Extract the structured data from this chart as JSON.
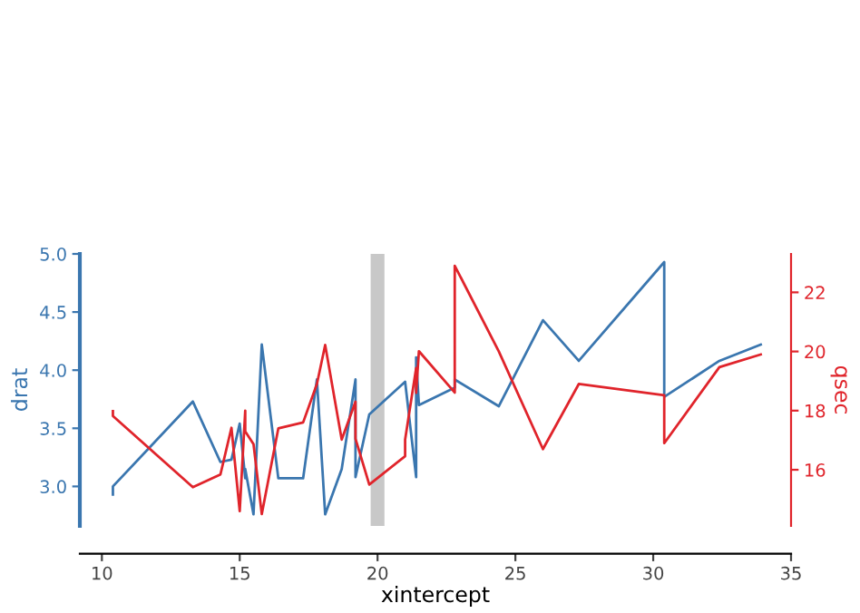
{
  "chart_data": {
    "type": "line",
    "xlabel": "xintercept",
    "ylabel": "drat",
    "y2label": "qsec",
    "x": [
      10.4,
      10.4,
      13.3,
      14.3,
      14.7,
      15.0,
      15.2,
      15.2,
      15.5,
      15.8,
      16.4,
      17.3,
      17.8,
      18.1,
      18.7,
      19.2,
      19.2,
      19.7,
      21.0,
      21.0,
      21.4,
      21.4,
      21.5,
      22.8,
      22.8,
      24.4,
      26.0,
      27.3,
      30.4,
      30.4,
      32.4,
      33.9
    ],
    "series": [
      {
        "color": "#3a76af",
        "axis": "y",
        "values": [
          2.93,
          3.0,
          3.73,
          3.21,
          3.23,
          3.54,
          3.07,
          3.15,
          2.76,
          4.22,
          3.07,
          3.07,
          3.92,
          2.76,
          3.15,
          3.92,
          3.08,
          3.62,
          3.9,
          3.9,
          3.08,
          4.11,
          3.7,
          3.85,
          3.92,
          3.69,
          4.43,
          4.08,
          4.93,
          3.77,
          4.08,
          4.22
        ]
      },
      {
        "color": "#e0242b",
        "axis": "y2",
        "values": [
          17.98,
          17.82,
          15.41,
          15.84,
          17.42,
          14.6,
          18.0,
          17.3,
          16.87,
          14.5,
          17.4,
          17.6,
          18.9,
          20.22,
          17.02,
          18.3,
          17.05,
          15.5,
          16.46,
          17.02,
          19.44,
          18.6,
          20.01,
          18.61,
          22.9,
          20.0,
          16.7,
          18.9,
          18.52,
          16.9,
          19.47,
          19.9
        ]
      }
    ],
    "xlim": [
      9.2,
      35
    ],
    "xticks": [
      10,
      15,
      20,
      25,
      30,
      35
    ],
    "ylim": [
      2.66,
      5.0
    ],
    "yticks": [
      {
        "value": 3,
        "label": "3.0"
      },
      {
        "value": 3.5,
        "label": "3.5"
      },
      {
        "value": 4,
        "label": "4.0"
      },
      {
        "value": 4.5,
        "label": "4.5"
      },
      {
        "value": 5,
        "label": "5.0"
      }
    ],
    "y2lim": [
      14.1,
      23.3
    ],
    "y2ticks": [
      16,
      18,
      20,
      22
    ],
    "bands": [
      {
        "axis": "x",
        "from": 19.75,
        "to": 20.25,
        "color": "#c8c8c8"
      }
    ],
    "grid": false,
    "legend": false
  }
}
